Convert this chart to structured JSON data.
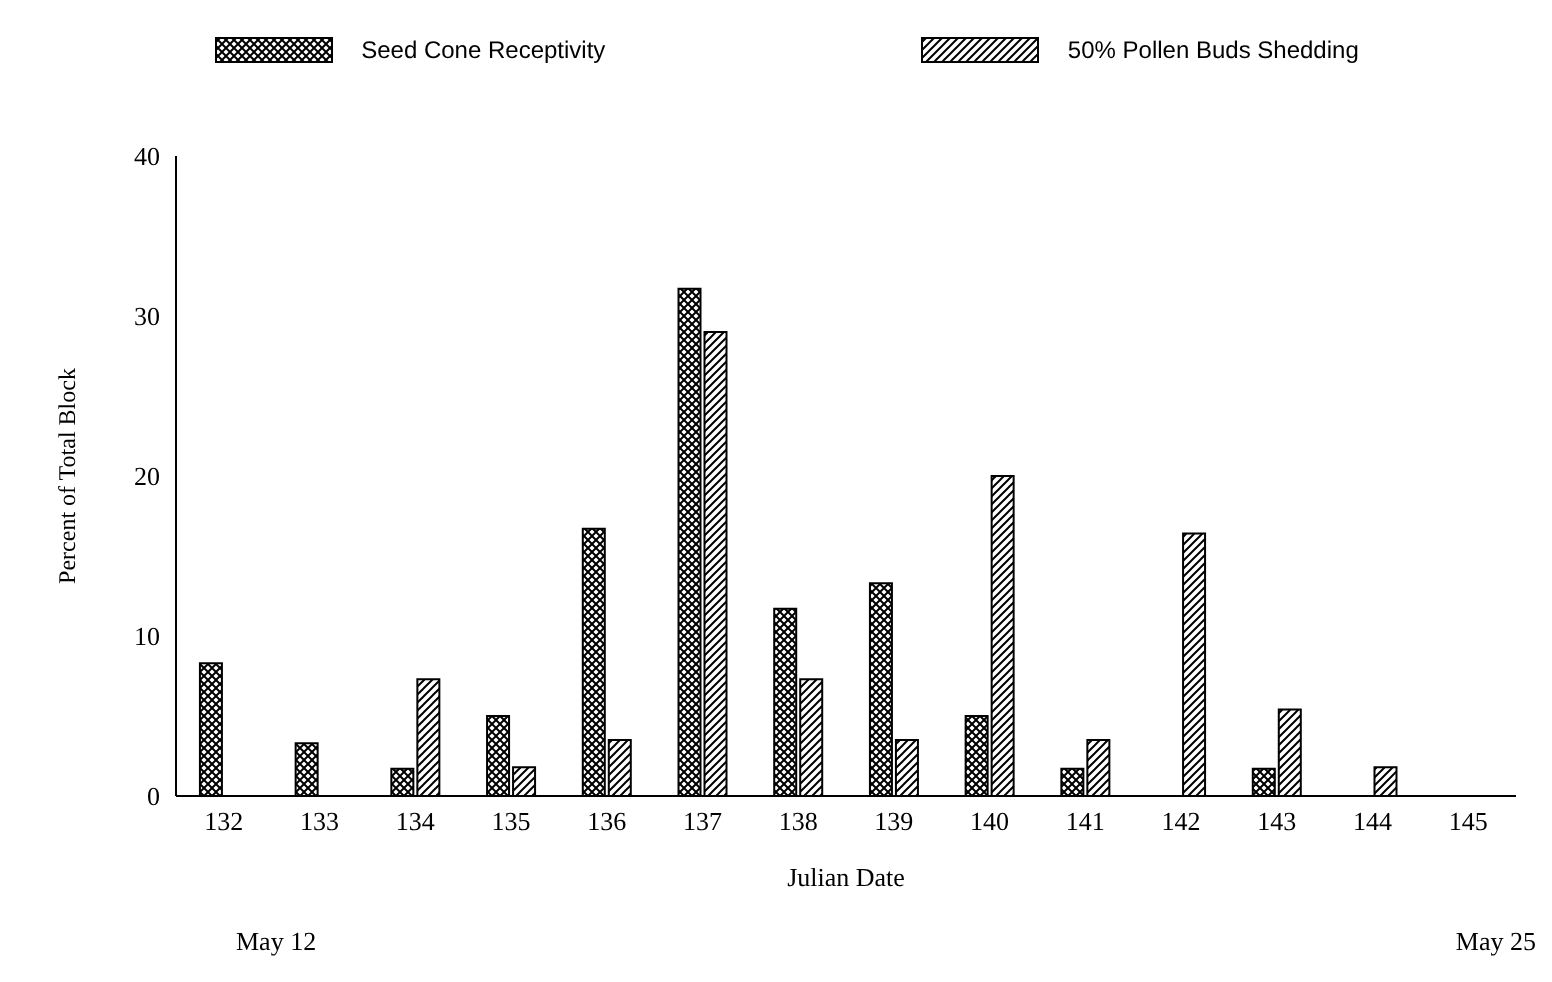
{
  "chart_data": {
    "type": "bar",
    "xlabel": "Julian Date",
    "ylabel": "Percent of Total Block",
    "categories": [
      "132",
      "133",
      "134",
      "135",
      "136",
      "137",
      "138",
      "139",
      "140",
      "141",
      "142",
      "143",
      "144",
      "145"
    ],
    "series": [
      {
        "name": "Seed Cone Receptivity",
        "color": "#000000",
        "values": [
          8.3,
          3.3,
          1.7,
          5,
          16.7,
          31.7,
          11.7,
          13.3,
          5,
          1.7,
          0,
          1.7,
          0,
          0
        ]
      },
      {
        "name": "50% Pollen Buds Shedding",
        "color": "#000000",
        "values": [
          0,
          0,
          7.3,
          1.8,
          3.5,
          29,
          7.3,
          3.5,
          20,
          3.5,
          16.4,
          5.4,
          1.8,
          0
        ]
      }
    ],
    "ylim": [
      0,
      40
    ],
    "yticks": [
      0,
      10,
      20,
      30,
      40
    ],
    "legend": "top",
    "annotations": [
      "May 12",
      "May 25"
    ]
  }
}
